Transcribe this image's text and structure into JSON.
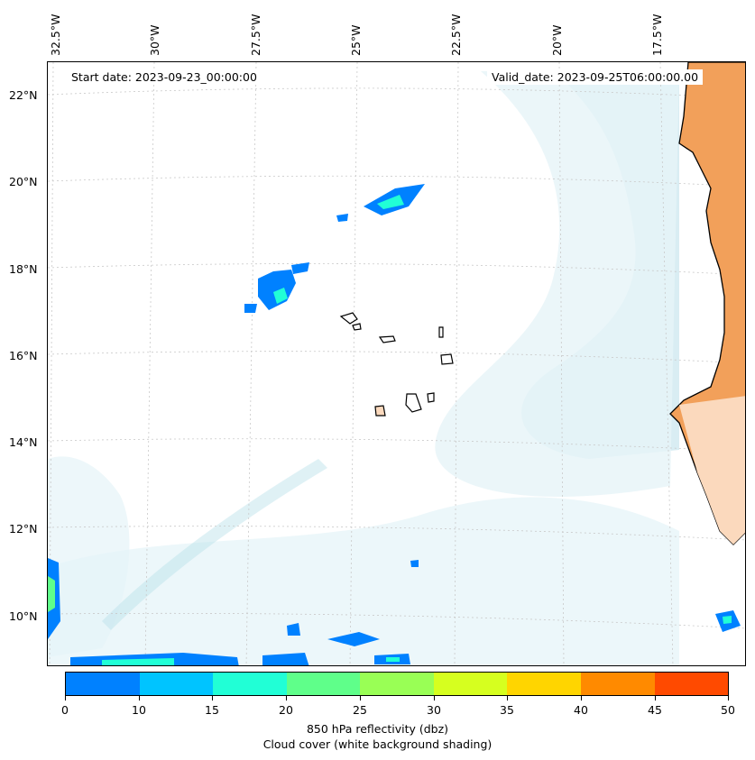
{
  "map": {
    "top_labels": [
      "32.5°W",
      "30°W",
      "27.5°W",
      "25°W",
      "22.5°W",
      "20°W",
      "17.5°W"
    ],
    "lat_labels": [
      "22°N",
      "20°N",
      "18°N",
      "16°N",
      "14°N",
      "12°N",
      "10°N"
    ],
    "start_date": "Start date: 2023-09-23_00:00:00",
    "valid_date": "Valid_date: 2023-09-25T06:00:00.00",
    "colors": {
      "land": "#f2a05a",
      "land_light": "#fbd9bd",
      "cloud": "#b9dfe9",
      "cloud_light": "#e6f4f8",
      "coast": "#000000"
    }
  },
  "colorbar": {
    "ticks": [
      "0",
      "10",
      "15",
      "20",
      "25",
      "30",
      "35",
      "40",
      "45",
      "50"
    ],
    "colors": [
      "#0081ff",
      "#00c4ff",
      "#21ffd6",
      "#5fff8a",
      "#99ff55",
      "#d6ff1f",
      "#ffd500",
      "#ff8a00",
      "#ff4a00"
    ],
    "caption_line1": "850 hPa reflectivity (dbz)",
    "caption_line2": "Cloud cover (white background shading)"
  }
}
